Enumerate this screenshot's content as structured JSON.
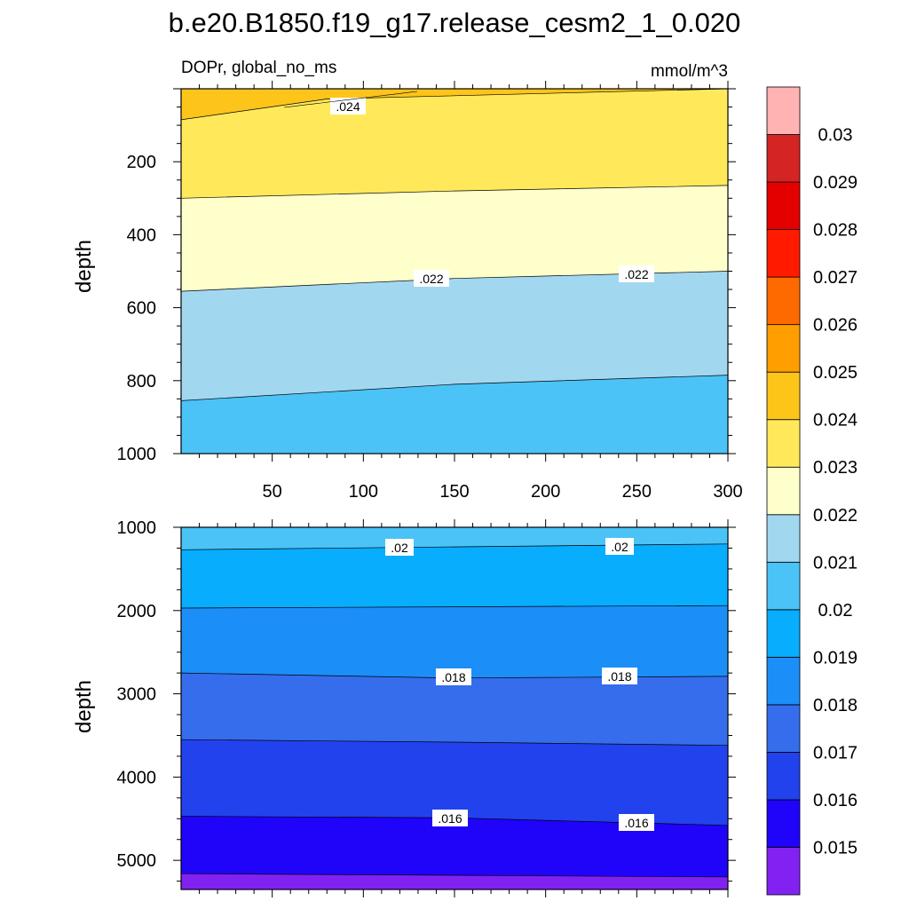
{
  "title": "b.e20.B1850.f19_g17.release_cesm2_1_0.020",
  "chart_data": {
    "type": "contour",
    "variable_label": "DOPr, global_no_ms",
    "units": "mmol/m^3",
    "colorbar": {
      "levels": [
        "0.015",
        "0.016",
        "0.017",
        "0.018",
        "0.019",
        "0.02",
        "0.021",
        "0.022",
        "0.023",
        "0.024",
        "0.025",
        "0.026",
        "0.027",
        "0.028",
        "0.029",
        "0.03"
      ],
      "colors": [
        "#8222f2",
        "#2003f9",
        "#2242ee",
        "#356ded",
        "#1c8ef8",
        "#08adfd",
        "#4bc3f6",
        "#a2d7f0",
        "#ffffcc",
        "#ffe95a",
        "#fdc41a",
        "#ff9e00",
        "#ff6a00",
        "#ff1a00",
        "#e50000",
        "#d42424",
        "#ffb3b3"
      ]
    },
    "panels": [
      {
        "name": "upper",
        "xlim": [
          0,
          300
        ],
        "ylim": [
          0,
          1000
        ],
        "y_inverted": true,
        "x_ticks": [
          "50",
          "100",
          "150",
          "200",
          "250",
          "300"
        ],
        "y_ticks": [
          "200",
          "400",
          "600",
          "800",
          "1000"
        ],
        "ylabel": "depth",
        "contour_labels": [
          ".024",
          ".022",
          ".022"
        ],
        "bands": [
          {
            "level_index": 10,
            "boundary_depths": [
              [
                0,
                85
              ],
              [
                80,
                28
              ],
              [
                300,
                0
              ]
            ]
          },
          {
            "level_index": 9,
            "boundary_depths": [
              [
                0,
                300
              ],
              [
                150,
                280
              ],
              [
                300,
                265
              ]
            ]
          },
          {
            "level_index": 8,
            "boundary_depths": [
              [
                0,
                555
              ],
              [
                150,
                520
              ],
              [
                300,
                500
              ]
            ]
          },
          {
            "level_index": 7,
            "boundary_depths": [
              [
                0,
                855
              ],
              [
                150,
                810
              ],
              [
                300,
                785
              ]
            ]
          },
          {
            "level_index": 6,
            "boundary_depths": [
              [
                0,
                1000
              ],
              [
                300,
                1000
              ]
            ]
          }
        ]
      },
      {
        "name": "lower",
        "xlim": [
          0,
          300
        ],
        "ylim": [
          1000,
          5350
        ],
        "y_inverted": true,
        "x_ticks": [],
        "y_ticks": [
          "1000",
          "2000",
          "3000",
          "4000",
          "5000"
        ],
        "ylabel": "depth",
        "contour_labels": [
          ".02",
          ".02",
          ".018",
          ".018",
          ".016",
          ".016"
        ],
        "bands": [
          {
            "level_index": 6,
            "boundary_depths": [
              [
                0,
                1270
              ],
              [
                300,
                1200
              ]
            ]
          },
          {
            "level_index": 5,
            "boundary_depths": [
              [
                0,
                1970
              ],
              [
                300,
                1940
              ]
            ]
          },
          {
            "level_index": 4,
            "boundary_depths": [
              [
                0,
                2750
              ],
              [
                150,
                2810
              ],
              [
                300,
                2790
              ]
            ]
          },
          {
            "level_index": 3,
            "boundary_depths": [
              [
                0,
                3550
              ],
              [
                150,
                3580
              ],
              [
                300,
                3620
              ]
            ]
          },
          {
            "level_index": 2,
            "boundary_depths": [
              [
                0,
                4470
              ],
              [
                150,
                4490
              ],
              [
                300,
                4580
              ]
            ]
          },
          {
            "level_index": 1,
            "boundary_depths": [
              [
                0,
                5160
              ],
              [
                300,
                5200
              ]
            ]
          },
          {
            "level_index": 0,
            "boundary_depths": [
              [
                0,
                5350
              ],
              [
                300,
                5350
              ]
            ]
          }
        ]
      }
    ]
  }
}
